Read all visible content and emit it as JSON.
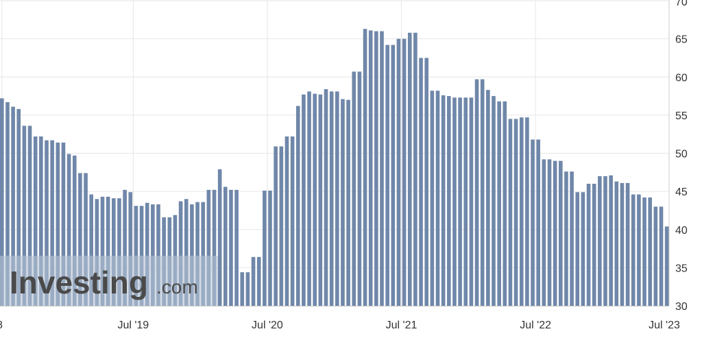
{
  "colors": {
    "bar": "#6f87a9",
    "grid": "#e6e6e6",
    "axis": "#cccccc",
    "text": "#333333",
    "watermark_band": "#b8c4d6",
    "watermark_text": "#4a4a4a"
  },
  "watermark": {
    "brand": "Investing",
    "suffix": ".com"
  },
  "chart_data": {
    "type": "bar",
    "title": "",
    "xlabel": "",
    "ylabel": "",
    "ylim": [
      30,
      70
    ],
    "y_ticks": [
      30,
      35,
      40,
      45,
      50,
      55,
      60,
      65,
      70
    ],
    "y_axis_side": "right",
    "grid": true,
    "x_tick_labels": [
      {
        "label": "8",
        "at": 0
      },
      {
        "label": "Jul '19",
        "at": 23.5
      },
      {
        "label": "Jul '20",
        "at": 47.5
      },
      {
        "label": "Jul '21",
        "at": 71.5
      },
      {
        "label": "Jul '22",
        "at": 95.5
      },
      {
        "label": "Jul '23",
        "at": 119
      }
    ],
    "values": [
      57.2,
      56.7,
      56.1,
      55.8,
      53.6,
      53.6,
      52.2,
      52.2,
      51.7,
      51.7,
      51.4,
      51.4,
      49.9,
      49.7,
      47.4,
      47.4,
      44.6,
      44.0,
      44.3,
      44.3,
      44.1,
      44.1,
      45.2,
      44.9,
      43.1,
      43.1,
      43.5,
      43.3,
      43.3,
      41.6,
      41.6,
      41.9,
      43.7,
      44.0,
      43.3,
      43.6,
      43.6,
      45.2,
      45.2,
      47.9,
      45.6,
      45.2,
      45.2,
      34.4,
      34.4,
      36.4,
      36.4,
      45.1,
      45.1,
      50.9,
      50.9,
      52.2,
      52.2,
      56.2,
      57.7,
      58.1,
      57.8,
      57.7,
      58.4,
      58.1,
      58.1,
      57.1,
      57.0,
      60.7,
      60.7,
      66.3,
      66.1,
      66.0,
      66.0,
      64.2,
      64.2,
      65.0,
      65.0,
      65.8,
      65.8,
      62.5,
      62.5,
      58.2,
      58.2,
      57.6,
      57.5,
      57.3,
      57.3,
      57.3,
      57.3,
      59.7,
      59.7,
      58.3,
      57.5,
      56.8,
      56.8,
      54.5,
      54.5,
      54.7,
      54.7,
      51.8,
      51.8,
      49.2,
      49.2,
      49.0,
      49.0,
      47.6,
      47.6,
      44.9,
      44.9,
      46.0,
      46.0,
      47.0,
      47.0,
      47.1,
      46.3,
      46.1,
      46.1,
      44.6,
      44.6,
      44.2,
      44.2,
      43.0,
      43.0,
      40.4
    ]
  }
}
